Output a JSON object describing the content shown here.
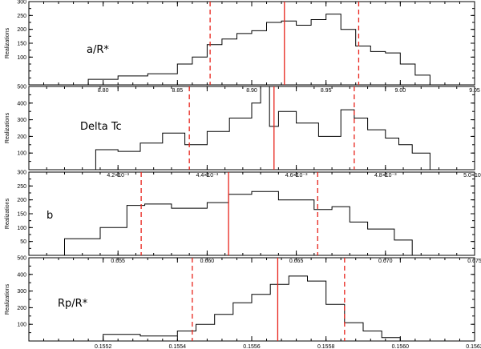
{
  "chart_data": [
    {
      "type": "histogram",
      "name": "a/R*",
      "ylabel": "Realizations",
      "xlim": [
        8.75,
        9.05
      ],
      "ylim": [
        0,
        300
      ],
      "x_ticks": [
        8.8,
        8.85,
        8.9,
        8.95,
        9.0,
        9.05
      ],
      "x_tick_labels": [
        "8.80",
        "8.85",
        "8.90",
        "8.95",
        "9.00",
        "9.05"
      ],
      "y_ticks": [
        100,
        150,
        200,
        250,
        300
      ],
      "y_tick_labels": [
        "100",
        "150",
        "200",
        "250",
        "300"
      ],
      "median": 8.922,
      "lower": 8.872,
      "upper": 8.972,
      "bins_x": [
        8.77,
        8.79,
        8.81,
        8.83,
        8.85,
        8.86,
        8.87,
        8.88,
        8.89,
        8.9,
        8.91,
        8.92,
        8.93,
        8.94,
        8.95,
        8.96,
        8.97,
        8.98,
        8.99,
        9.0,
        9.01,
        9.02
      ],
      "bins_y": [
        0,
        20,
        32,
        40,
        75,
        100,
        145,
        165,
        185,
        195,
        225,
        230,
        215,
        235,
        255,
        200,
        140,
        120,
        115,
        75,
        35,
        0
      ]
    },
    {
      "type": "histogram",
      "name": "Delta Tc",
      "ylabel": "Realizations",
      "xlim": [
        0.004,
        0.005
      ],
      "ylim": [
        0,
        500
      ],
      "x_ticks": [
        0.0042,
        0.0044,
        0.0046,
        0.0048,
        0.005
      ],
      "x_tick_labels": [
        "4.2×10⁻³",
        "4.4×10⁻³",
        "4.6×10⁻³",
        "4.8×10⁻³",
        "5.0×10⁻³"
      ],
      "y_ticks": [
        100,
        200,
        300,
        400,
        500
      ],
      "y_tick_labels": [
        "100",
        "200",
        "300",
        "400",
        "500"
      ],
      "median": 0.00455,
      "lower": 0.00436,
      "upper": 0.00473,
      "bins_x": [
        0.0041,
        0.00415,
        0.0042,
        0.00425,
        0.0043,
        0.00435,
        0.0044,
        0.00445,
        0.0045,
        0.00452,
        0.00454,
        0.00456,
        0.0046,
        0.00465,
        0.0047,
        0.00473,
        0.00476,
        0.0048,
        0.00483,
        0.00486,
        0.0049
      ],
      "bins_y": [
        0,
        120,
        110,
        160,
        220,
        150,
        230,
        310,
        400,
        500,
        260,
        350,
        280,
        200,
        360,
        310,
        240,
        190,
        150,
        100,
        0
      ]
    },
    {
      "type": "histogram",
      "name": "b",
      "ylabel": "Realizations",
      "xlim": [
        0.65,
        0.675
      ],
      "ylim": [
        0,
        300
      ],
      "x_ticks": [
        0.655,
        0.66,
        0.665,
        0.67,
        0.675
      ],
      "x_tick_labels": [
        "0.655",
        "0.660",
        "0.665",
        "0.670",
        "0.675"
      ],
      "y_ticks": [
        50,
        100,
        150,
        200,
        250,
        300
      ],
      "y_tick_labels": [
        "50",
        "100",
        "150",
        "200",
        "250",
        "300"
      ],
      "median": 0.6612,
      "lower": 0.6563,
      "upper": 0.6662,
      "bins_x": [
        0.6505,
        0.652,
        0.654,
        0.6555,
        0.6565,
        0.658,
        0.66,
        0.6612,
        0.6625,
        0.664,
        0.666,
        0.667,
        0.668,
        0.669,
        0.6705,
        0.6715
      ],
      "bins_y": [
        0,
        60,
        100,
        180,
        185,
        170,
        190,
        220,
        230,
        200,
        165,
        175,
        120,
        95,
        55,
        0
      ]
    },
    {
      "type": "histogram",
      "name": "Rp/R*",
      "ylabel": "Realizations",
      "xlim": [
        0.155,
        0.1562
      ],
      "ylim": [
        0,
        500
      ],
      "x_ticks": [
        0.1552,
        0.1554,
        0.1556,
        0.1558,
        0.156,
        0.1562
      ],
      "x_tick_labels": [
        "0.1552",
        "0.1554",
        "0.1556",
        "0.1558",
        "0.1560",
        "0.1562"
      ],
      "y_ticks": [
        100,
        200,
        300,
        400,
        500
      ],
      "y_tick_labels": [
        "100",
        "200",
        "300",
        "400",
        "500"
      ],
      "median": 0.15567,
      "lower": 0.15544,
      "upper": 0.15585,
      "bins_x": [
        0.1551,
        0.1552,
        0.1553,
        0.1554,
        0.15545,
        0.1555,
        0.15555,
        0.1556,
        0.15565,
        0.1557,
        0.15575,
        0.1558,
        0.15585,
        0.1559,
        0.15595,
        0.156
      ],
      "bins_y": [
        0,
        40,
        30,
        60,
        100,
        160,
        230,
        280,
        340,
        390,
        360,
        220,
        110,
        60,
        20,
        0
      ]
    }
  ]
}
